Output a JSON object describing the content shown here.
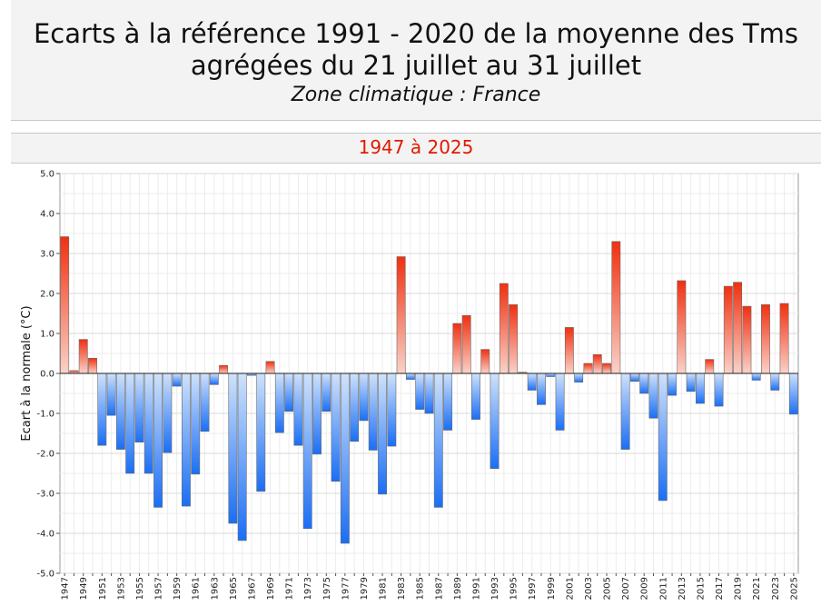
{
  "header": {
    "title_line1": "Ecarts à la référence 1991 - 2020 de la moyenne des Tms",
    "title_line2": "agrégées du 21 juillet au 31 juillet",
    "subtitle": "Zone climatique : France",
    "period": "1947 à 2025"
  },
  "colors": {
    "positive": "#f03010",
    "negative": "#1a6ef5",
    "period_text": "#e01a00"
  },
  "chart_data": {
    "type": "bar",
    "ylabel": "Ecart à la normale (°C)",
    "ylim": [
      -5,
      5
    ],
    "yticks": [
      "5.0",
      "4.0",
      "3.0",
      "2.0",
      "1.0",
      "0.0",
      "-1.0",
      "-2.0",
      "-3.0",
      "-4.0",
      "-5.0"
    ],
    "grid": true,
    "categories": [
      "1947",
      "1948",
      "1949",
      "1950",
      "1951",
      "1952",
      "1953",
      "1954",
      "1955",
      "1956",
      "1957",
      "1958",
      "1959",
      "1960",
      "1961",
      "1962",
      "1963",
      "1964",
      "1965",
      "1966",
      "1967",
      "1968",
      "1969",
      "1970",
      "1971",
      "1972",
      "1973",
      "1974",
      "1975",
      "1976",
      "1977",
      "1978",
      "1979",
      "1980",
      "1981",
      "1982",
      "1983",
      "1984",
      "1985",
      "1986",
      "1987",
      "1988",
      "1989",
      "1990",
      "1991",
      "1992",
      "1993",
      "1994",
      "1995",
      "1996",
      "1997",
      "1998",
      "1999",
      "2000",
      "2001",
      "2002",
      "2003",
      "2004",
      "2005",
      "2006",
      "2007",
      "2008",
      "2009",
      "2010",
      "2011",
      "2012",
      "2013",
      "2014",
      "2015",
      "2016",
      "2017",
      "2018",
      "2019",
      "2020",
      "2021",
      "2022",
      "2023",
      "2024",
      "2025"
    ],
    "values": [
      3.42,
      0.07,
      0.85,
      0.38,
      -1.8,
      -1.05,
      -1.9,
      -2.5,
      -1.72,
      -2.5,
      -3.35,
      -1.98,
      -0.32,
      -3.32,
      -2.52,
      -1.45,
      -0.28,
      0.2,
      -3.75,
      -4.18,
      -0.05,
      -2.95,
      0.3,
      -1.48,
      -0.95,
      -1.8,
      -3.88,
      -2.02,
      -0.95,
      -2.7,
      -4.25,
      -1.7,
      -1.18,
      -1.92,
      -3.02,
      -1.82,
      2.92,
      -0.15,
      -0.9,
      -1.0,
      -3.35,
      -1.42,
      1.25,
      1.45,
      -1.15,
      0.6,
      -2.38,
      2.25,
      1.72,
      0.03,
      -0.42,
      -0.78,
      -0.08,
      -1.42,
      1.15,
      -0.22,
      0.25,
      0.47,
      0.25,
      3.3,
      -1.9,
      -0.2,
      -0.5,
      -1.12,
      -3.18,
      -0.55,
      2.32,
      -0.45,
      -0.75,
      0.35,
      -0.82,
      2.18,
      2.28,
      1.68,
      -0.17,
      1.72,
      -0.42,
      1.75,
      -1.02
    ]
  }
}
